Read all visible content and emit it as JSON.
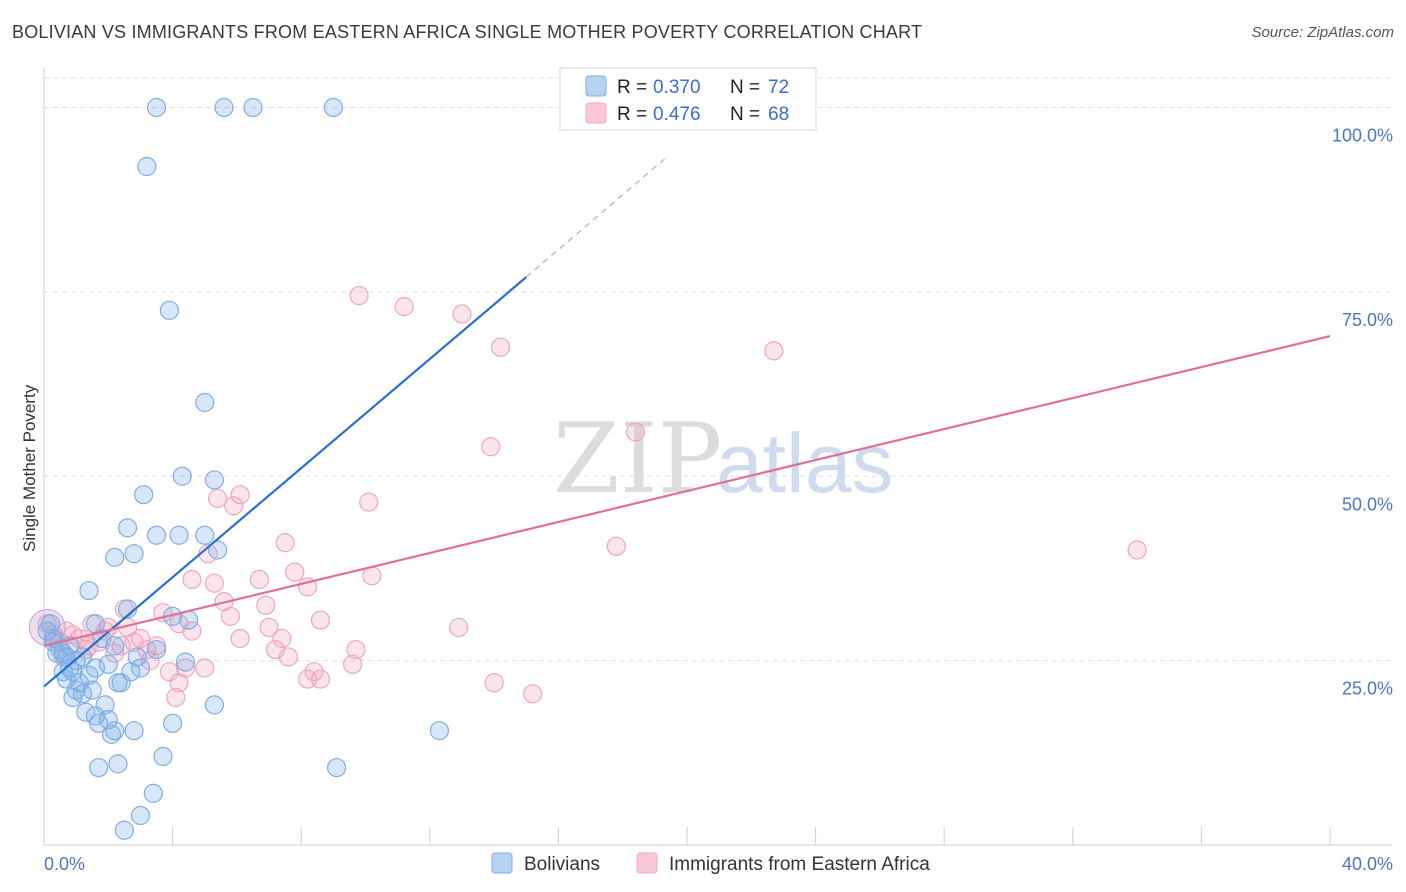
{
  "title": "BOLIVIAN VS IMMIGRANTS FROM EASTERN AFRICA SINGLE MOTHER POVERTY CORRELATION CHART",
  "source": "Source: ZipAtlas.com",
  "watermark": {
    "zip": "ZIP",
    "atlas": "atlas"
  },
  "colors": {
    "blue": "#7eaee6",
    "blue_line": "#2a6fcf",
    "pink": "#f3a8c1",
    "pink_line": "#e07098",
    "tick": "#4a78c2",
    "grid": "#dedede"
  },
  "legend": {
    "rows": [
      {
        "r_label": "R =",
        "r_value": "0.370",
        "n_label": "N =",
        "n_value": "72"
      },
      {
        "r_label": "R =",
        "r_value": "0.476",
        "n_label": "N =",
        "n_value": "68"
      }
    ]
  },
  "bottom_legend": [
    "Bolivians",
    "Immigrants from Eastern Africa"
  ],
  "chart_data": {
    "type": "scatter",
    "xlabel": "",
    "ylabel": "Single Mother Poverty",
    "xlim": [
      0,
      40
    ],
    "ylim": [
      0,
      104
    ],
    "x_tick_labels": [
      "0.0%",
      "40.0%"
    ],
    "y_ticks": [
      25,
      50,
      75,
      100
    ],
    "y_tick_labels": [
      "25.0%",
      "50.0%",
      "75.0%",
      "100.0%"
    ],
    "grid": true,
    "series": [
      {
        "name": "Bolivians",
        "trend": {
          "x0": 0,
          "y0": 21.5,
          "x1": 15,
          "y1": 77,
          "dash_to_x": 19.3,
          "dash_to_y": 93
        },
        "points": [
          [
            3.5,
            100
          ],
          [
            5.6,
            100
          ],
          [
            6.5,
            100
          ],
          [
            9.0,
            100
          ],
          [
            3.2,
            92
          ],
          [
            3.9,
            72.5
          ],
          [
            5.0,
            60
          ],
          [
            4.3,
            50
          ],
          [
            5.3,
            49.5
          ],
          [
            3.1,
            47.5
          ],
          [
            2.6,
            43
          ],
          [
            4.2,
            42
          ],
          [
            3.5,
            42
          ],
          [
            5.0,
            42
          ],
          [
            2.8,
            39.5
          ],
          [
            2.2,
            39
          ],
          [
            5.4,
            40
          ],
          [
            1.4,
            34.5
          ],
          [
            2.6,
            32
          ],
          [
            4.0,
            31
          ],
          [
            4.5,
            30.5
          ],
          [
            1.6,
            30
          ],
          [
            1.8,
            28
          ],
          [
            0.3,
            28
          ],
          [
            2.2,
            27
          ],
          [
            3.5,
            26.5
          ],
          [
            0.4,
            26
          ],
          [
            0.7,
            25.5
          ],
          [
            1.2,
            25.5
          ],
          [
            0.6,
            26
          ],
          [
            2.9,
            25.5
          ],
          [
            4.4,
            24.8
          ],
          [
            0.8,
            24
          ],
          [
            1.6,
            24
          ],
          [
            2.7,
            23.5
          ],
          [
            0.6,
            23.5
          ],
          [
            0.9,
            23.5
          ],
          [
            1.4,
            23
          ],
          [
            1.1,
            22
          ],
          [
            2.3,
            22
          ],
          [
            1.0,
            21
          ],
          [
            1.5,
            21
          ],
          [
            0.9,
            20
          ],
          [
            1.9,
            19
          ],
          [
            5.3,
            19
          ],
          [
            1.3,
            18
          ],
          [
            1.6,
            17.5
          ],
          [
            2.0,
            17
          ],
          [
            1.7,
            16.5
          ],
          [
            4.0,
            16.5
          ],
          [
            2.2,
            15.5
          ],
          [
            2.8,
            15.5
          ],
          [
            12.3,
            15.5
          ],
          [
            2.1,
            15
          ],
          [
            3.7,
            12
          ],
          [
            2.3,
            11
          ],
          [
            1.7,
            10.5
          ],
          [
            9.1,
            10.5
          ],
          [
            3.4,
            7
          ],
          [
            3.0,
            4
          ],
          [
            2.5,
            2
          ],
          [
            0.2,
            30
          ],
          [
            0.1,
            29
          ],
          [
            0.3,
            27.5
          ],
          [
            0.5,
            26.5
          ],
          [
            1.0,
            25
          ],
          [
            2.0,
            24.5
          ],
          [
            0.7,
            22.5
          ],
          [
            1.2,
            20.5
          ],
          [
            2.4,
            22
          ],
          [
            3.0,
            24
          ],
          [
            0.8,
            27
          ]
        ]
      },
      {
        "name": "Immigrants from Eastern Africa",
        "trend": {
          "x0": 0,
          "y0": 27,
          "x1": 40,
          "y1": 69
        },
        "points": [
          [
            0.1,
            30
          ],
          [
            9.8,
            74.5
          ],
          [
            11.2,
            73
          ],
          [
            13.0,
            72
          ],
          [
            14.2,
            67.5
          ],
          [
            22.7,
            67
          ],
          [
            18.4,
            56
          ],
          [
            13.9,
            54
          ],
          [
            5.4,
            47
          ],
          [
            6.1,
            47.5
          ],
          [
            5.9,
            46
          ],
          [
            10.1,
            46.5
          ],
          [
            7.5,
            41
          ],
          [
            17.8,
            40.5
          ],
          [
            34.0,
            40
          ],
          [
            5.1,
            39.5
          ],
          [
            7.8,
            37
          ],
          [
            4.6,
            36
          ],
          [
            5.3,
            35.5
          ],
          [
            6.7,
            36
          ],
          [
            10.2,
            36.5
          ],
          [
            8.2,
            35
          ],
          [
            5.6,
            33
          ],
          [
            6.9,
            32.5
          ],
          [
            2.5,
            32
          ],
          [
            3.7,
            31.5
          ],
          [
            5.8,
            31
          ],
          [
            8.6,
            30.5
          ],
          [
            1.5,
            30
          ],
          [
            2.6,
            29.5
          ],
          [
            4.2,
            30
          ],
          [
            7.0,
            29.5
          ],
          [
            12.9,
            29.5
          ],
          [
            0.7,
            29
          ],
          [
            1.9,
            29
          ],
          [
            4.6,
            29
          ],
          [
            0.9,
            28.5
          ],
          [
            3.0,
            28
          ],
          [
            7.4,
            28
          ],
          [
            1.7,
            27.5
          ],
          [
            2.4,
            27
          ],
          [
            3.5,
            27
          ],
          [
            7.2,
            26.5
          ],
          [
            9.7,
            26.5
          ],
          [
            1.3,
            26.5
          ],
          [
            2.2,
            26
          ],
          [
            7.6,
            25.5
          ],
          [
            0.6,
            25.5
          ],
          [
            3.3,
            25
          ],
          [
            4.4,
            24
          ],
          [
            9.6,
            24.5
          ],
          [
            3.9,
            23.5
          ],
          [
            8.4,
            23.5
          ],
          [
            8.2,
            22.5
          ],
          [
            8.6,
            22.5
          ],
          [
            4.2,
            22
          ],
          [
            14.0,
            22
          ],
          [
            15.2,
            20.5
          ],
          [
            4.1,
            20
          ],
          [
            0.3,
            28.5
          ],
          [
            1.1,
            28
          ],
          [
            2.0,
            29.5
          ],
          [
            3.2,
            26.5
          ],
          [
            0.5,
            27.5
          ],
          [
            6.1,
            28
          ],
          [
            1.4,
            27
          ],
          [
            5.0,
            24
          ],
          [
            2.8,
            27.5
          ]
        ]
      }
    ]
  }
}
